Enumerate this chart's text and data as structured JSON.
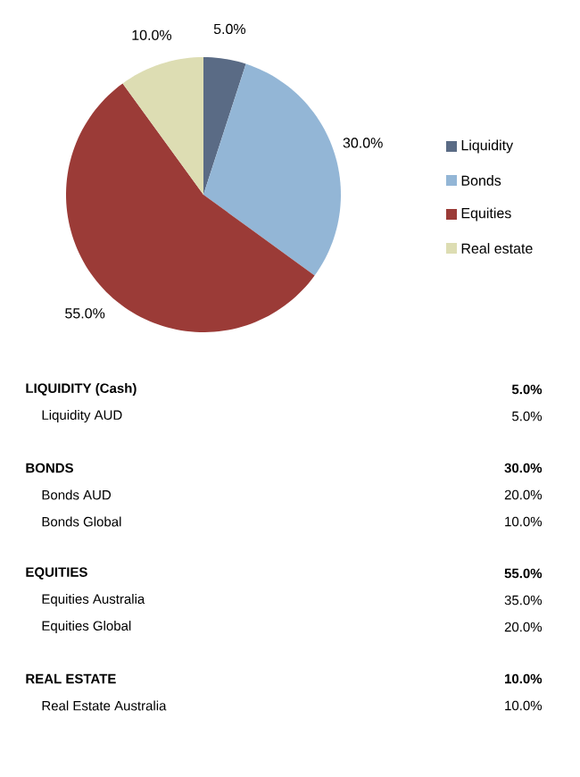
{
  "chart_data": {
    "type": "pie",
    "categories": [
      "Liquidity",
      "Bonds",
      "Equities",
      "Real estate"
    ],
    "values": [
      5.0,
      30.0,
      55.0,
      10.0
    ],
    "colors": [
      "#5a6b85",
      "#93b6d6",
      "#9b3b37",
      "#ddddb3"
    ],
    "value_labels": [
      "5.0%",
      "30.0%",
      "55.0%",
      "10.0%"
    ],
    "legend": "right",
    "annotations": [
      "LIQUIDITY (Cash)",
      "5.0%",
      "Liquidity AUD",
      "5.0%",
      "BONDS",
      "30.0%",
      "Bonds AUD",
      "20.0%",
      "Bonds Global",
      "10.0%",
      "EQUITIES",
      "55.0%",
      "Equities Australia",
      "35.0%",
      "Equities Global",
      "20.0%",
      "REAL ESTATE",
      "10.0%",
      "Real Estate Australia",
      "10.0%"
    ]
  }
}
